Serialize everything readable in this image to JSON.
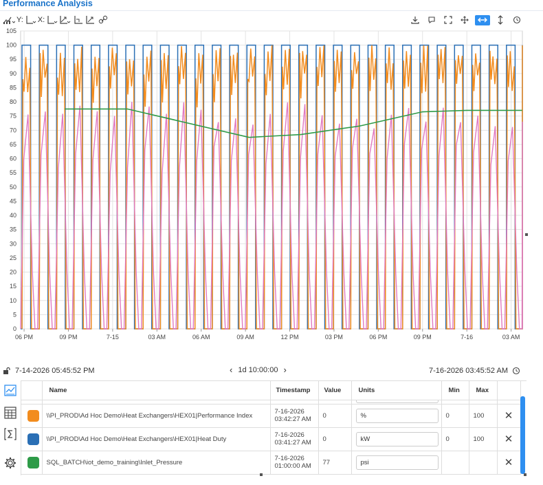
{
  "app": {
    "title": "Performance Analysis"
  },
  "toolbar": {
    "y_label": "Y:",
    "x_label": "X:",
    "icons_left": [
      "chart-type-icon",
      "y-axis-icon",
      "x-axis-icon",
      "axis-scale-icon",
      "bar-chart-icon",
      "trend-icon",
      "link-icon"
    ],
    "icons_right": [
      "download-icon",
      "comment-icon",
      "fullscreen-icon",
      "pan-icon",
      "horizontal-zoom-icon",
      "vertical-zoom-icon",
      "reset-icon"
    ],
    "active_color": "#2e8ff0"
  },
  "chart_data": {
    "type": "line",
    "ylim": [
      0,
      105
    ],
    "y_ticks": [
      0,
      5,
      10,
      15,
      20,
      25,
      30,
      35,
      40,
      45,
      50,
      55,
      60,
      65,
      70,
      75,
      80,
      85,
      90,
      95,
      100,
      105
    ],
    "x_tick_labels": [
      "06 PM",
      "09 PM",
      "7-15",
      "03 AM",
      "06 AM",
      "09 AM",
      "12 PM",
      "03 PM",
      "06 PM",
      "09 PM",
      "7-16",
      "03 AM"
    ],
    "x_start": "7-14-2026 05:45:52 PM",
    "x_end": "7-16-2026 03:45:52 AM",
    "grid": true,
    "series": [
      {
        "color": "#2a6fb5",
        "pattern": "square wave, 0 to 100",
        "cycles": 29
      },
      {
        "color": "#f28c1e",
        "pattern": "sawtooth peaks 85-100, drops to 0",
        "cycles": 29
      },
      {
        "color": "#e07ac0",
        "pattern": "triangle 0 to ~75",
        "cycles": 29
      },
      {
        "color": "#2e9b48",
        "values_x": [
          "7-14 08:45 PM",
          "7-15 01:00 AM",
          "7-15 09:15 AM",
          "7-15 12:45 PM",
          "7-15 04:45 PM",
          "7-15 09:00 PM",
          "7-16 12:00 AM",
          "7-16 03:45 AM"
        ],
        "values_y": [
          77.5,
          77.5,
          67.5,
          68.5,
          71.5,
          76.5,
          77,
          77
        ]
      }
    ]
  },
  "time_bar": {
    "start": "7-14-2026 05:45:52 PM",
    "duration": "1d 10:00:00",
    "end": "7-16-2026 03:45:52 AM"
  },
  "table": {
    "headers": {
      "name": "Name",
      "timestamp": "Timestamp",
      "value": "Value",
      "units": "Units",
      "min": "Min",
      "max": "Max"
    },
    "rows": [
      {
        "color": "#f28c1e",
        "name": "\\\\PI_PROD\\Ad Hoc Demo\\Heat Exchangers\\HEX01|Performance Index",
        "ts1": "7-16-2026",
        "ts2": "03:42:27 AM",
        "value": "0",
        "units": "%",
        "min": "0",
        "max": "100"
      },
      {
        "color": "#2a6fb5",
        "name": "\\\\PI_PROD\\Ad Hoc Demo\\Heat Exchangers\\HEX01|Heat Duty",
        "ts1": "7-16-2026",
        "ts2": "03:41:27 AM",
        "value": "0",
        "units": "kW",
        "min": "0",
        "max": "100"
      },
      {
        "color": "#2e9b48",
        "name": "SQL_BATCH\\iot_demo_training\\Inlet_Pressure",
        "ts1": "7-16-2026",
        "ts2": "01:00:00 AM",
        "value": "77",
        "units": "psi",
        "min": "",
        "max": ""
      }
    ],
    "delete_glyph": "✕"
  }
}
